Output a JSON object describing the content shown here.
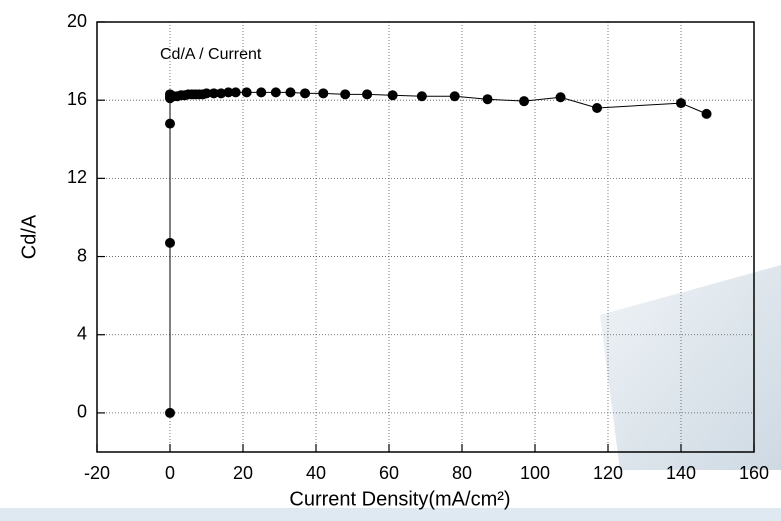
{
  "chart_data": {
    "type": "scatter",
    "annotation": "Cd/A / Current",
    "xlabel": "Current Density(mA/cm²)",
    "ylabel": "Cd/A",
    "xlim": [
      -20,
      160
    ],
    "xticks": [
      -20,
      0,
      20,
      40,
      60,
      80,
      100,
      120,
      140,
      160
    ],
    "ylim": [
      -2,
      20
    ],
    "yticks": [
      0,
      4,
      8,
      12,
      16,
      20
    ],
    "grid": true,
    "series": [
      {
        "color": "#000000",
        "x": [
          0,
          0,
          0,
          0,
          0,
          0,
          1,
          2,
          3,
          4,
          5,
          6,
          7,
          8,
          9,
          10,
          12,
          14,
          16,
          18,
          21,
          25,
          29,
          33,
          37,
          42,
          48,
          54,
          61,
          69,
          78,
          87,
          97,
          107,
          117,
          140,
          147
        ],
        "values": [
          0,
          8.7,
          14.8,
          16.1,
          16.3,
          16.2,
          16.2,
          16.2,
          16.25,
          16.25,
          16.3,
          16.3,
          16.3,
          16.3,
          16.3,
          16.35,
          16.35,
          16.35,
          16.4,
          16.4,
          16.4,
          16.4,
          16.4,
          16.4,
          16.35,
          16.35,
          16.3,
          16.3,
          16.25,
          16.2,
          16.2,
          16.05,
          15.95,
          16.15,
          15.6,
          15.85,
          15.3
        ]
      }
    ]
  }
}
